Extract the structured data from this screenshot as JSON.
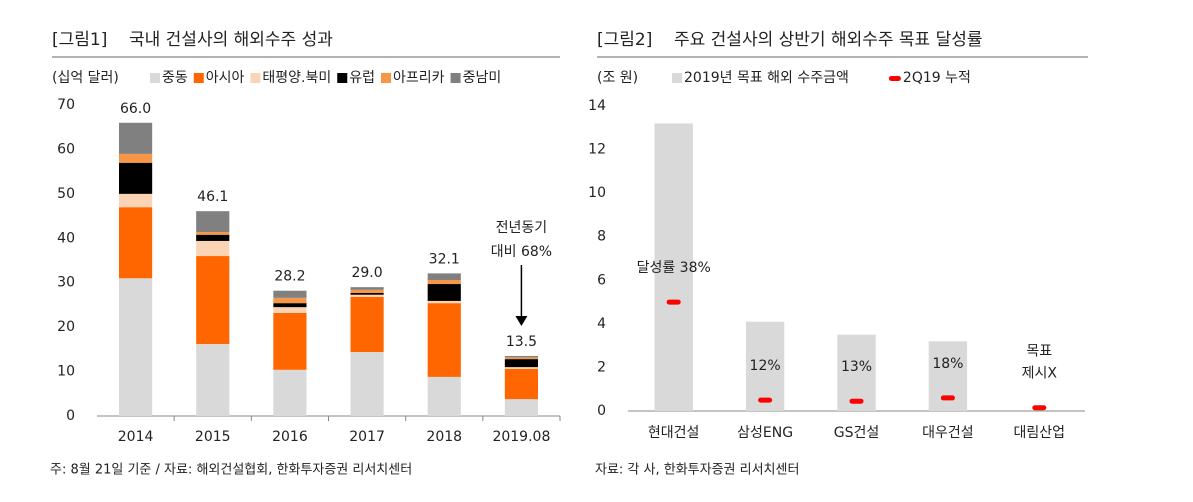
{
  "chart_data": [
    {
      "type": "bar",
      "stacked": true,
      "title": "[그림1]    국내 건설사의 해외수주 성과",
      "unit_label": "(십억 달러)",
      "categories": [
        "2014",
        "2015",
        "2016",
        "2017",
        "2018",
        "2019.08"
      ],
      "series": [
        {
          "name": "중동",
          "color": "#d9d9d9",
          "values": [
            31,
            16.2,
            10.4,
            14.4,
            8.8,
            3.8
          ]
        },
        {
          "name": "아시아",
          "color": "#ff6600",
          "values": [
            16,
            19.8,
            12.8,
            12.4,
            16.6,
            6.8
          ]
        },
        {
          "name": "태평양.북미",
          "color": "#fbd3b5",
          "values": [
            3,
            3.4,
            1.3,
            0.5,
            0.5,
            0.4
          ]
        },
        {
          "name": "유럽",
          "color": "#000000",
          "values": [
            7,
            1.4,
            0.9,
            0.4,
            3.8,
            1.8
          ]
        },
        {
          "name": "아프리카",
          "color": "#f79646",
          "values": [
            2,
            0.6,
            1.2,
            0.7,
            0.9,
            0.4
          ]
        },
        {
          "name": "중남미",
          "color": "#808080",
          "values": [
            7,
            4.7,
            1.6,
            0.6,
            1.5,
            0.3
          ]
        }
      ],
      "totals": [
        66.0,
        46.1,
        28.2,
        29.0,
        32.1,
        13.5
      ],
      "total_labels": [
        "66.0",
        "46.1",
        "28.2",
        "29.0",
        "32.1",
        "13.5"
      ],
      "annotation": [
        "전년동기",
        "대비 68%"
      ],
      "ylim": [
        0,
        70
      ],
      "yticks": [
        0,
        10,
        20,
        30,
        40,
        50,
        60,
        70
      ],
      "grid": false,
      "note": "주: 8월 21일 기준 / 자료: 해외건설협회, 한화투자증권 리서치센터"
    },
    {
      "type": "bar",
      "stacked": false,
      "title": "[그림2]    주요 건설사의 상반기 해외수주 목표 달성률",
      "unit_label": "(조 원)",
      "categories": [
        "현대건설",
        "삼성ENG",
        "GS건설",
        "대우건설",
        "대림산업"
      ],
      "series": [
        {
          "name": "2019년 목표 해외 수주금액",
          "color": "#d9d9d9",
          "mark": "bar",
          "values": [
            13.2,
            4.1,
            3.5,
            3.2,
            null
          ]
        },
        {
          "name": "2Q19 누적",
          "color": "#ff0000",
          "mark": "dash",
          "values": [
            5.0,
            0.5,
            0.45,
            0.6,
            0.15
          ]
        }
      ],
      "rate_labels": [
        [
          "달성률 38%"
        ],
        [
          "12%"
        ],
        [
          "13%"
        ],
        [
          "18%"
        ],
        [
          "목표",
          "제시X"
        ]
      ],
      "ylim": [
        0,
        14
      ],
      "yticks": [
        0,
        2,
        4,
        6,
        8,
        10,
        12,
        14
      ],
      "grid": false,
      "note": "자료: 각 사, 한화투자증권 리서치센터"
    }
  ]
}
